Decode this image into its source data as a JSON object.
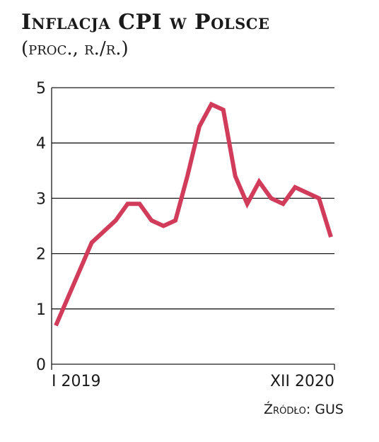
{
  "chart_data": {
    "type": "line",
    "title": "Inflacja CPI w Polsce",
    "subtitle": "(proc., r./r.)",
    "ylim": [
      0,
      5
    ],
    "y_ticks": [
      "0",
      "1",
      "2",
      "3",
      "4",
      "5"
    ],
    "x_tick_labels": [
      "I 2019",
      "XII 2020"
    ],
    "grid": true,
    "series": [
      {
        "color": "#d13c5a",
        "values": [
          0.7,
          1.2,
          1.7,
          2.2,
          2.4,
          2.6,
          2.9,
          2.9,
          2.6,
          2.5,
          2.6,
          3.4,
          4.3,
          4.7,
          4.6,
          3.4,
          2.9,
          3.3,
          3.0,
          2.9,
          3.2,
          3.1,
          3.0,
          2.3
        ]
      }
    ],
    "source": "Źródło: GUS"
  }
}
